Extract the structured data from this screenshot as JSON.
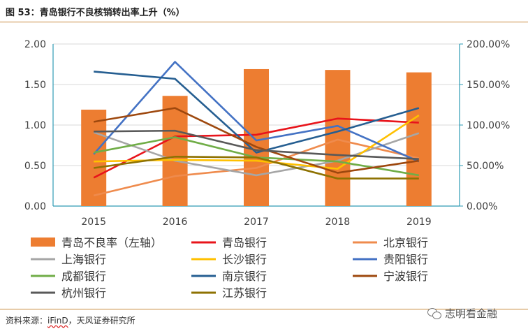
{
  "figure": {
    "title": "图 53：青岛银行不良核销转出率上升（%）",
    "source_prefix": "资料来源：",
    "source_brand": "iFinD",
    "source_suffix": "，天风证券研究所",
    "watermark": "志明看金融",
    "watermark_icon": "wechat-icon"
  },
  "chart_data": {
    "type": "bar",
    "categories": [
      "2015",
      "2016",
      "2017",
      "2018",
      "2019"
    ],
    "left_axis": {
      "min": 0,
      "max": 2,
      "ticks": [
        "0.00",
        "0.50",
        "1.00",
        "1.50",
        "2.00"
      ]
    },
    "right_axis": {
      "min": 0,
      "max": 200,
      "ticks": [
        "0.00%",
        "50.00%",
        "100.00%",
        "150.00%",
        "200.00%"
      ]
    },
    "grid": true,
    "legend_position": "bottom",
    "bars": {
      "name": "青岛不良率（左轴）",
      "color": "#ed7d31",
      "axis": "left",
      "values": [
        1.19,
        1.36,
        1.69,
        1.68,
        1.65
      ]
    },
    "series": [
      {
        "name": "青岛银行",
        "color": "#e8141b",
        "values": [
          35,
          86,
          88,
          108,
          103
        ]
      },
      {
        "name": "北京银行",
        "color": "#ef8b4d",
        "values": [
          13,
          37,
          47,
          82,
          59
        ]
      },
      {
        "name": "上海银行",
        "color": "#a6a6a6",
        "values": [
          91,
          56,
          38,
          56,
          90
        ]
      },
      {
        "name": "长沙银行",
        "color": "#ffc000",
        "values": [
          55,
          57,
          56,
          46,
          112
        ]
      },
      {
        "name": "贵阳银行",
        "color": "#4472c4",
        "values": [
          64,
          178,
          81,
          99,
          55
        ]
      },
      {
        "name": "成都银行",
        "color": "#70ad47",
        "values": [
          66,
          85,
          60,
          55,
          38
        ]
      },
      {
        "name": "南京银行",
        "color": "#255e91",
        "values": [
          166,
          157,
          66,
          92,
          121
        ]
      },
      {
        "name": "宁波银行",
        "color": "#9e480e",
        "values": [
          104,
          121,
          73,
          41,
          56
        ]
      },
      {
        "name": "杭州银行",
        "color": "#595959",
        "values": [
          92,
          93,
          69,
          63,
          58
        ]
      },
      {
        "name": "江苏银行",
        "color": "#8e7202",
        "values": [
          47,
          61,
          60,
          34,
          34
        ]
      }
    ]
  }
}
